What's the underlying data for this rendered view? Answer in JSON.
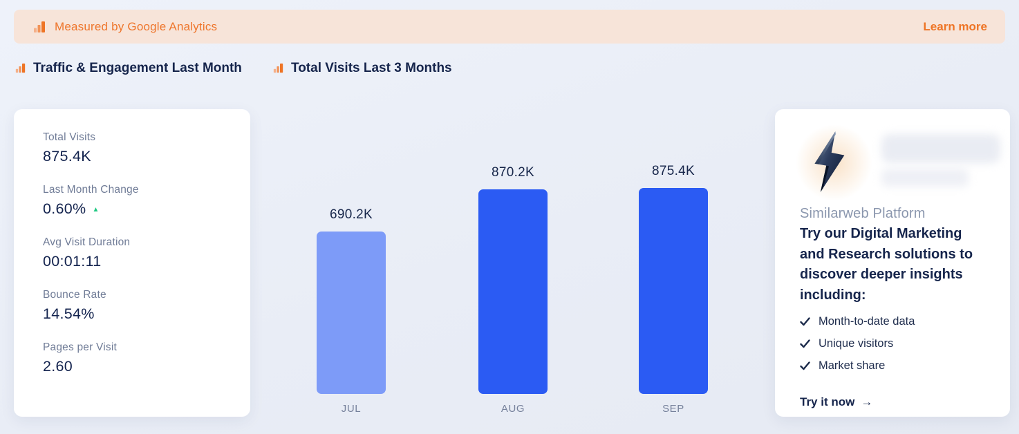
{
  "banner": {
    "text": "Measured by Google Analytics",
    "link_label": "Learn more"
  },
  "sections": {
    "traffic_title": "Traffic & Engagement Last Month",
    "chart_title": "Total Visits Last 3 Months"
  },
  "stats": [
    {
      "label": "Total Visits",
      "value": "875.4K"
    },
    {
      "label": "Last Month Change",
      "value": "0.60%",
      "trend": "up"
    },
    {
      "label": "Avg Visit Duration",
      "value": "00:01:11"
    },
    {
      "label": "Bounce Rate",
      "value": "14.54%"
    },
    {
      "label": "Pages per Visit",
      "value": "2.60"
    }
  ],
  "chart_data": {
    "type": "bar",
    "title": "Total Visits Last 3 Months",
    "categories": [
      "JUL",
      "AUG",
      "SEP"
    ],
    "values": [
      690200,
      870200,
      875400
    ],
    "value_labels": [
      "690.2K",
      "870.2K",
      "875.4K"
    ],
    "bar_colors": [
      "#7D9BF8",
      "#2B5BF3",
      "#2B5BF3"
    ],
    "ylim": [
      0,
      875400
    ],
    "grid": false,
    "legend": false
  },
  "promo": {
    "brand": "Similarweb Platform",
    "heading": "Try our Digital Marketing and Research solutions to discover deeper insights including:",
    "items": [
      "Month-to-date data",
      "Unique visitors",
      "Market share"
    ],
    "cta_label": "Try it now",
    "cta_arrow": "→"
  },
  "glyphs": {
    "trend_up": "▲"
  },
  "icons": {
    "banner_icon": "analytics-bars",
    "section_icon": "analytics-bars",
    "promo_icon": "lightning-bolt",
    "list_icon": "checkmark"
  },
  "colors": {
    "accent_orange": "#EE752B",
    "banner_bg": "#F7E4D9",
    "navy": "#16254C",
    "label_gray": "#6F7B96",
    "month_gray": "#76819B",
    "bar_light": "#7D9BF8",
    "bar_dark": "#2B5BF3",
    "positive_green": "#1EC882",
    "card_bg": "#FFFFFF"
  }
}
